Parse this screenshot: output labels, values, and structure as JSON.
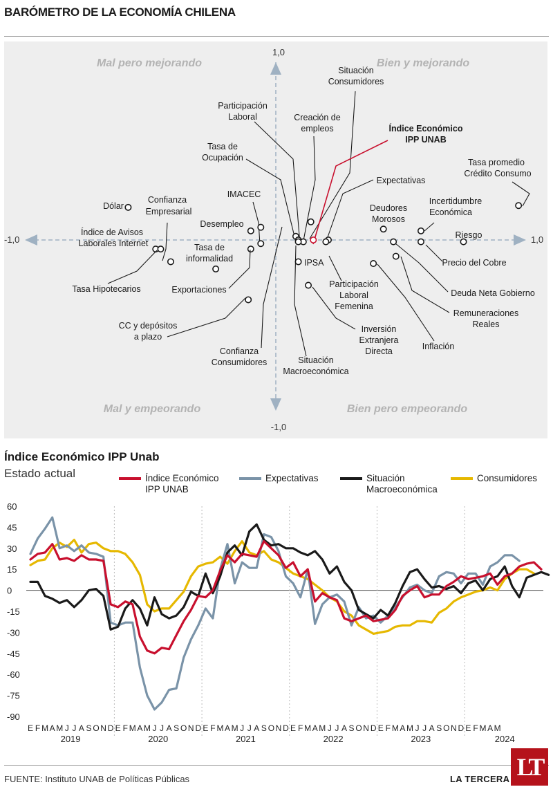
{
  "title": "BARÓMETRO DE LA ECONOMÍA CHILENA",
  "chart_data": [
    {
      "type": "scatter",
      "title": "BARÓMETRO DE LA ECONOMÍA CHILENA",
      "xlim": [
        -1.0,
        1.0
      ],
      "ylim": [
        -1.0,
        1.0
      ],
      "axis_labels": {
        "x_min": "-1,0",
        "x_max": "1,0",
        "y_min": "-1,0",
        "y_max": "1,0"
      },
      "quadrants": {
        "top_left": "Mal pero mejorando",
        "top_right": "Bien y mejorando",
        "bottom_left": "Mal y empeorando",
        "bottom_right": "Bien pero empeorando"
      },
      "accent_color": "#c8102e",
      "points": [
        {
          "label": "Dólar",
          "x": -0.59,
          "y": 0.18
        },
        {
          "label": "Confianza Empresarial",
          "x": -0.42,
          "y": -0.12
        },
        {
          "label": "Índice de Avisos Laborales Internet",
          "x": -0.48,
          "y": -0.05
        },
        {
          "label": "Tasa Hipotecarios",
          "x": -0.46,
          "y": -0.05
        },
        {
          "label": "IMACEC",
          "x": -0.06,
          "y": 0.07
        },
        {
          "label": "Desempleo",
          "x": -0.1,
          "y": 0.05
        },
        {
          "label": "Tasa de informalidad",
          "x": -0.1,
          "y": -0.05
        },
        {
          "label": "Exportaciones",
          "x": -0.24,
          "y": -0.16
        },
        {
          "label": "CC y depósitos a plazo",
          "x": -0.11,
          "y": -0.33
        },
        {
          "label": "Confianza Consumidores",
          "x": -0.06,
          "y": -0.02
        },
        {
          "label": "Tasa de Ocupación",
          "x": 0.08,
          "y": 0.02
        },
        {
          "label": "Participación Laboral",
          "x": 0.09,
          "y": 0.0
        },
        {
          "label": "Creación de empleos",
          "x": 0.11,
          "y": -0.01
        },
        {
          "label": "Situación Consumidores",
          "x": 0.14,
          "y": 0.1
        },
        {
          "label": "Situación Macroeconómica",
          "x": 0.09,
          "y": -0.01
        },
        {
          "label": "IPSA",
          "x": 0.09,
          "y": -0.12
        },
        {
          "label": "Índice Económico IPP UNAB",
          "x": 0.15,
          "y": 0.0
        },
        {
          "label": "Expectativas",
          "x": 0.21,
          "y": 0.0
        },
        {
          "label": "Participación Laboral Femenina",
          "x": 0.2,
          "y": -0.01
        },
        {
          "label": "Inversión Extranjera Directa",
          "x": 0.13,
          "y": -0.25
        },
        {
          "label": "Deudores Morosos",
          "x": 0.43,
          "y": 0.06
        },
        {
          "label": "Incertidumbre Económica",
          "x": 0.58,
          "y": 0.05
        },
        {
          "label": "Riesgo",
          "x": 0.75,
          "y": -0.01
        },
        {
          "label": "Precio del Cobre",
          "x": 0.58,
          "y": -0.01
        },
        {
          "label": "Deuda Neta Gobierno",
          "x": 0.47,
          "y": -0.01
        },
        {
          "label": "Remuneraciones Reales",
          "x": 0.48,
          "y": -0.09
        },
        {
          "label": "Inflación",
          "x": 0.39,
          "y": -0.13
        },
        {
          "label": "Tasa promedio Crédito Consumo",
          "x": 0.97,
          "y": 0.19
        }
      ]
    },
    {
      "type": "line",
      "title": "Índice Económico IPP Unab",
      "subtitle": "Estado actual",
      "ylim": [
        -90,
        60
      ],
      "yticks": [
        60,
        45,
        30,
        15,
        0,
        -15,
        -30,
        -45,
        -60,
        -75,
        -90
      ],
      "month_letters": [
        "E",
        "F",
        "M",
        "A",
        "M",
        "J",
        "J",
        "A",
        "S",
        "O",
        "N",
        "D"
      ],
      "partial_year_months": [
        "E",
        "F",
        "M",
        "A",
        "M"
      ],
      "years": [
        "2019",
        "2020",
        "2021",
        "2022",
        "2023",
        "2024"
      ],
      "series": [
        {
          "name": "Índice Económico IPP UNAB",
          "color": "#c8102e",
          "values": [
            22,
            26,
            27,
            33,
            22,
            23,
            21,
            25,
            22,
            22,
            21,
            -10,
            -12,
            -8,
            -10,
            -33,
            -43,
            -45,
            -41,
            -42,
            -32,
            -22,
            -14,
            -4,
            -5,
            0,
            14,
            25,
            20,
            26,
            25,
            24,
            35,
            30,
            25,
            16,
            20,
            10,
            15,
            -8,
            -2,
            -5,
            -7,
            -20,
            -22,
            -20,
            -18,
            -22,
            -21,
            -20,
            -14,
            -4,
            0,
            3,
            -5,
            -3,
            -3,
            3,
            6,
            10,
            8,
            9,
            10,
            12,
            4,
            10,
            12,
            17,
            19,
            20,
            15
          ]
        },
        {
          "name": "Expectativas",
          "color": "#7a93a8",
          "values": [
            26,
            37,
            44,
            52,
            30,
            32,
            28,
            32,
            27,
            26,
            24,
            -23,
            -25,
            -23,
            -23,
            -55,
            -75,
            -85,
            -80,
            -71,
            -70,
            -48,
            -35,
            -25,
            -13,
            -20,
            15,
            33,
            5,
            20,
            16,
            16,
            40,
            38,
            28,
            10,
            5,
            -5,
            15,
            -24,
            -10,
            -5,
            -3,
            -8,
            -25,
            -12,
            -20,
            -18,
            -23,
            -18,
            -12,
            -5,
            2,
            4,
            0,
            -2,
            10,
            13,
            12,
            5,
            12,
            12,
            4,
            17,
            20,
            25,
            25,
            21
          ]
        },
        {
          "name": "Situación Macroeconómica",
          "color": "#1a1a1a",
          "values": [
            6,
            6,
            -4,
            -6,
            -9,
            -7,
            -12,
            -7,
            0,
            1,
            -4,
            -28,
            -26,
            -13,
            -7,
            -13,
            -25,
            -5,
            -17,
            -20,
            -18,
            -12,
            -1,
            -4,
            12,
            -2,
            10,
            27,
            32,
            25,
            42,
            47,
            36,
            32,
            33,
            30,
            30,
            27,
            25,
            28,
            22,
            12,
            17,
            6,
            0,
            -14,
            -17,
            -20,
            -14,
            -18,
            -9,
            3,
            13,
            15,
            8,
            2,
            3,
            1,
            3,
            -2,
            5,
            7,
            0,
            8,
            10,
            17,
            3,
            -5,
            9,
            11,
            13,
            11
          ]
        },
        {
          "name": "Consumidores",
          "color": "#e6b800",
          "values": [
            18,
            21,
            22,
            30,
            34,
            31,
            36,
            27,
            33,
            34,
            30,
            28,
            28,
            26,
            20,
            11,
            -10,
            -15,
            -13,
            -13,
            -7,
            -1,
            10,
            17,
            19,
            20,
            24,
            19,
            28,
            35,
            27,
            25,
            28,
            22,
            20,
            16,
            12,
            10,
            8,
            4,
            0,
            -5,
            -8,
            -15,
            -18,
            -25,
            -28,
            -31,
            -30,
            -29,
            -26,
            -25,
            -25,
            -22,
            -22,
            -23,
            -16,
            -13,
            -8,
            -5,
            -3,
            -1,
            0,
            2,
            0,
            8,
            12,
            15,
            15,
            12
          ]
        }
      ]
    }
  ],
  "source": "FUENTE: Instituto UNAB de Políticas Públicas",
  "publisher": "LA TERCERA",
  "logo_text": "LT"
}
